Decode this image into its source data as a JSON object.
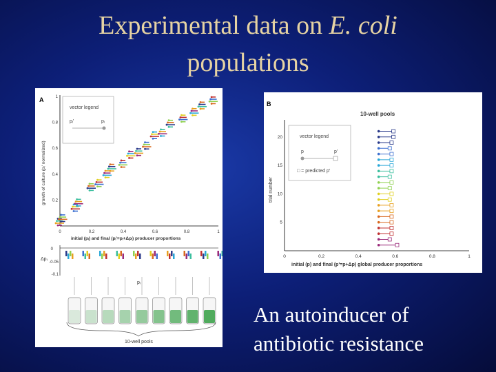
{
  "slide": {
    "title_line1_prefix": "Experimental data on ",
    "title_line1_italic": "E. coli",
    "title_line2": "populations",
    "caption_line1": "An autoinducer of",
    "caption_line2": "antibiotic resistance"
  },
  "panel_a": {
    "label": "A",
    "legend_title": "vector legend",
    "legend_p_from": "pᵢ'",
    "legend_p_to": "pᵢ",
    "ylabel": "growth of culture (pᵢ' normalized)",
    "xlabel": "initial (pᵢ) and final (pᵢ'=pᵢ+Δpᵢ) producer proportions",
    "x_ticks": [
      "0",
      "0.2",
      "0.4",
      "0.6",
      "0.8",
      "1"
    ],
    "y_ticks": [
      "0.2",
      "0.4",
      "0.6",
      "0.8",
      "1"
    ],
    "bottom_ylabel": "Δpᵢ",
    "bottom_y_ticks": [
      "0",
      "-0.05",
      "-0.1"
    ],
    "bottom_xlabel": "pᵢ",
    "wells_label": "10-well pools"
  },
  "panel_b": {
    "label": "B",
    "heading": "10-well pools",
    "legend_title": "vector legend",
    "legend_p": "p",
    "legend_p_prime": "p'",
    "legend_predicted": "□ = predicted p'",
    "ylabel": "trial number",
    "xlabel": "initial (p) and final (p'=p+Δp) global producer proportions",
    "x_ticks": [
      "0",
      "0.2",
      "0.4",
      "0.6",
      "0.8",
      "1"
    ],
    "y_ticks": [
      "5",
      "10",
      "15",
      "20"
    ]
  },
  "chart_data": [
    {
      "type": "scatter",
      "panel": "A",
      "x_range": [
        0,
        1
      ],
      "y_range": [
        0,
        1
      ],
      "points": [
        {
          "x": 0.0,
          "y": 0.03
        },
        {
          "x": 0.02,
          "y": 0.06
        },
        {
          "x": 0.1,
          "y": 0.14
        },
        {
          "x": 0.12,
          "y": 0.18
        },
        {
          "x": 0.2,
          "y": 0.3
        },
        {
          "x": 0.25,
          "y": 0.33
        },
        {
          "x": 0.3,
          "y": 0.4
        },
        {
          "x": 0.33,
          "y": 0.45
        },
        {
          "x": 0.4,
          "y": 0.48
        },
        {
          "x": 0.45,
          "y": 0.55
        },
        {
          "x": 0.5,
          "y": 0.57
        },
        {
          "x": 0.55,
          "y": 0.62
        },
        {
          "x": 0.6,
          "y": 0.7
        },
        {
          "x": 0.65,
          "y": 0.72
        },
        {
          "x": 0.7,
          "y": 0.79
        },
        {
          "x": 0.78,
          "y": 0.83
        },
        {
          "x": 0.85,
          "y": 0.88
        },
        {
          "x": 0.9,
          "y": 0.93
        },
        {
          "x": 0.97,
          "y": 0.97
        }
      ]
    },
    {
      "type": "scatter",
      "panel": "B",
      "x_range": [
        0,
        1
      ],
      "y_range": [
        0,
        23
      ],
      "trials": [
        {
          "trial": 1,
          "p": 0.51,
          "p_final": 0.61
        },
        {
          "trial": 2,
          "p": 0.51,
          "p_final": 0.57
        },
        {
          "trial": 3,
          "p": 0.51,
          "p_final": 0.58
        },
        {
          "trial": 4,
          "p": 0.51,
          "p_final": 0.58
        },
        {
          "trial": 5,
          "p": 0.51,
          "p_final": 0.58
        },
        {
          "trial": 6,
          "p": 0.51,
          "p_final": 0.58
        },
        {
          "trial": 7,
          "p": 0.51,
          "p_final": 0.58
        },
        {
          "trial": 8,
          "p": 0.51,
          "p_final": 0.58
        },
        {
          "trial": 9,
          "p": 0.51,
          "p_final": 0.57
        },
        {
          "trial": 10,
          "p": 0.51,
          "p_final": 0.58
        },
        {
          "trial": 11,
          "p": 0.51,
          "p_final": 0.57
        },
        {
          "trial": 12,
          "p": 0.51,
          "p_final": 0.58
        },
        {
          "trial": 13,
          "p": 0.51,
          "p_final": 0.57
        },
        {
          "trial": 14,
          "p": 0.51,
          "p_final": 0.58
        },
        {
          "trial": 15,
          "p": 0.51,
          "p_final": 0.58
        },
        {
          "trial": 16,
          "p": 0.51,
          "p_final": 0.58
        },
        {
          "trial": 17,
          "p": 0.51,
          "p_final": 0.58
        },
        {
          "trial": 18,
          "p": 0.51,
          "p_final": 0.57
        },
        {
          "trial": 19,
          "p": 0.51,
          "p_final": 0.58
        },
        {
          "trial": 20,
          "p": 0.51,
          "p_final": 0.59
        },
        {
          "trial": 21,
          "p": 0.51,
          "p_final": 0.59
        }
      ]
    }
  ],
  "colors": {
    "series": [
      "#2a3a8a",
      "#3b6fd0",
      "#2aa8d8",
      "#3bbf9e",
      "#8fd14f",
      "#e0d020",
      "#e8a020",
      "#d96a20",
      "#c03030",
      "#9a2a7a"
    ],
    "bar_green": "#3fa34d"
  }
}
